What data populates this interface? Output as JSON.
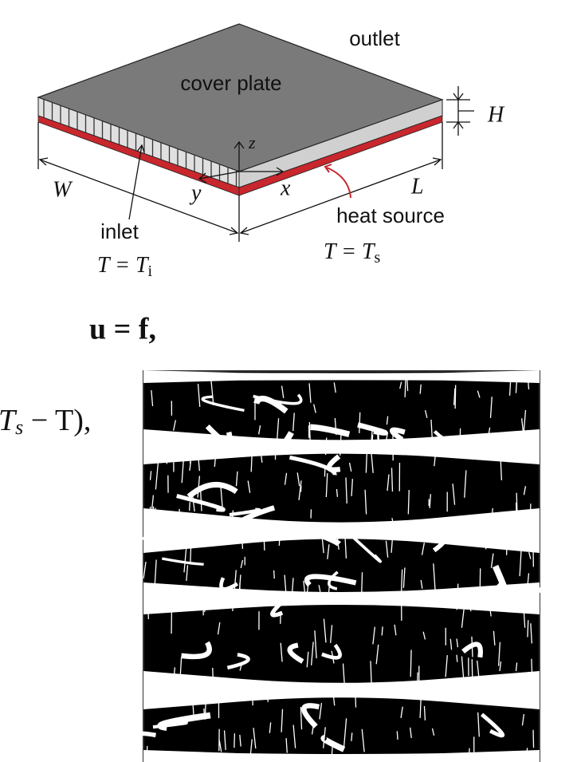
{
  "diagram": {
    "labels": {
      "outlet": "outlet",
      "cover_plate": "cover plate",
      "H": "H",
      "z": "z",
      "W": "W",
      "y": "y",
      "x": "x",
      "L": "L",
      "inlet": "inlet",
      "inlet_temp": {
        "main": "T = T",
        "sub": "i"
      },
      "heat_source": "heat source",
      "source_temp": {
        "main": "T = T",
        "sub": "s"
      }
    }
  },
  "equations": {
    "eq1": "u = f,",
    "eq2": {
      "pre": "T",
      "sub": "s",
      "post": " − T),"
    }
  }
}
